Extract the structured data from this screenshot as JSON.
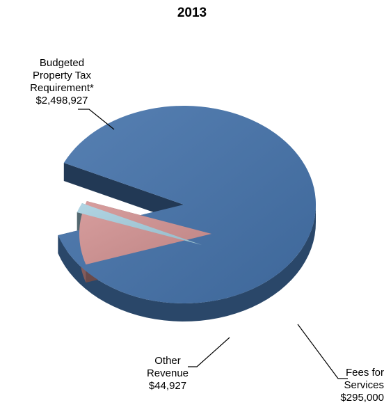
{
  "chart_data": {
    "type": "pie",
    "title": "2013",
    "slices": [
      {
        "label_lines": [
          "Budgeted",
          "Property Tax",
          "Requirement*",
          "$2,498,927"
        ],
        "value": 2498927,
        "color": "#4472aa"
      },
      {
        "label_lines": [
          "Fees for",
          "Services",
          "$295,000"
        ],
        "value": 295000,
        "color": "#d39393"
      },
      {
        "label_lines": [
          "Other",
          "Revenue",
          "$44,927"
        ],
        "value": 44927,
        "color": "#a8d0e0"
      }
    ],
    "exploded": true,
    "style": "3d"
  }
}
